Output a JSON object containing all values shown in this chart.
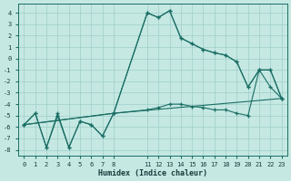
{
  "xlabel": "Humidex (Indice chaleur)",
  "bg_color": "#c5e8e3",
  "grid_color": "#9fcec8",
  "line_color": "#1a6e64",
  "xlim": [
    -0.5,
    23.5
  ],
  "ylim": [
    -8.5,
    4.8
  ],
  "xticks": [
    0,
    1,
    2,
    3,
    4,
    5,
    6,
    7,
    8,
    11,
    12,
    13,
    14,
    15,
    16,
    17,
    18,
    19,
    20,
    21,
    22,
    23
  ],
  "yticks": [
    4,
    3,
    2,
    1,
    0,
    -1,
    -2,
    -3,
    -4,
    -5,
    -6,
    -7,
    -8
  ],
  "curve1_x": [
    0,
    1,
    2,
    3,
    4,
    5,
    6,
    7,
    8,
    11,
    12,
    13,
    14,
    15,
    16,
    17,
    18,
    19,
    20,
    21,
    22,
    23
  ],
  "curve1_y": [
    -5.8,
    -4.8,
    -7.8,
    -4.8,
    -7.8,
    -5.5,
    -5.8,
    -6.8,
    -4.8,
    4.0,
    3.6,
    4.2,
    1.8,
    1.3,
    0.8,
    0.5,
    0.3,
    -0.3,
    -2.5,
    -1.0,
    -1.0,
    -3.5
  ],
  "curve2_x": [
    0,
    1,
    2,
    3,
    4,
    5,
    6,
    7,
    8,
    11,
    12,
    13,
    14,
    15,
    16,
    17,
    18,
    19,
    20,
    21,
    22,
    23
  ],
  "curve2_y": [
    -5.8,
    -4.8,
    -7.8,
    -5.0,
    -7.8,
    -5.5,
    -5.8,
    -6.8,
    -4.8,
    4.0,
    3.6,
    4.2,
    1.8,
    1.3,
    0.8,
    0.5,
    0.3,
    -0.3,
    -2.5,
    -1.0,
    -2.5,
    -3.5
  ],
  "curve3_x": [
    0,
    8,
    11,
    12,
    13,
    14,
    15,
    16,
    17,
    18,
    19,
    20,
    21,
    22,
    23
  ],
  "curve3_y": [
    -5.8,
    -4.8,
    -4.5,
    -4.3,
    -4.0,
    -4.0,
    -4.2,
    -4.3,
    -4.5,
    -4.5,
    -4.8,
    -5.0,
    -1.0,
    -1.0,
    -3.5
  ],
  "curve4_x": [
    0,
    8,
    23
  ],
  "curve4_y": [
    -5.8,
    -4.8,
    -3.5
  ]
}
